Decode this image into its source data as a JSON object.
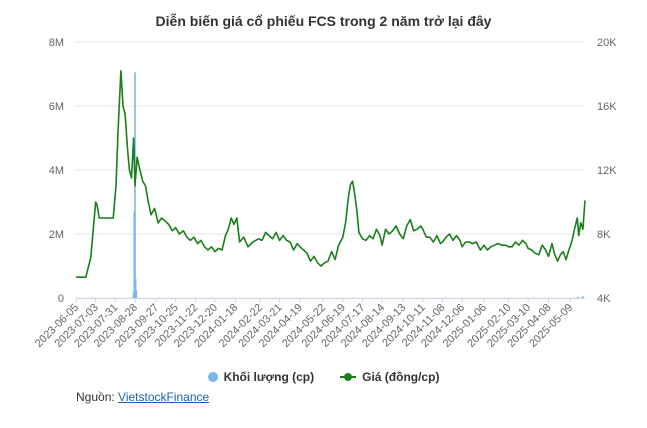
{
  "chart_data": {
    "type": "line",
    "title": "Diễn biến giá cổ phiếu FCS trong 2 năm trở lại đây",
    "x_tick_labels": [
      "2023-06-05",
      "2023-07-03",
      "2023-07-31",
      "2023-08-28",
      "2023-09-27",
      "2023-10-25",
      "2023-11-22",
      "2023-12-20",
      "2024-01-18",
      "2024-02-22",
      "2024-03-21",
      "2024-04-19",
      "2024-05-22",
      "2024-06-19",
      "2024-07-17",
      "2024-08-14",
      "2024-09-13",
      "2024-10-11",
      "2024-11-08",
      "2024-12-06",
      "2025-01-06",
      "2025-02-10",
      "2025-03-10",
      "2025-04-08",
      "2025-05-09"
    ],
    "y_left": {
      "ticks": [
        "0",
        "2M",
        "4M",
        "6M",
        "8M"
      ],
      "range": [
        0,
        8000000
      ]
    },
    "y_right": {
      "ticks": [
        "4K",
        "8K",
        "12K",
        "16K",
        "20K"
      ],
      "range": [
        4000,
        20000
      ]
    },
    "grid": true,
    "legend_position": "bottom",
    "series": [
      {
        "name": "Khối lượng (cp)",
        "kind": "column",
        "axis": "left",
        "color": "#7cb5ec",
        "points": [
          [
            "2023-08-26",
            180000
          ],
          [
            "2023-08-27",
            2700000
          ],
          [
            "2023-08-28",
            7050000
          ],
          [
            "2023-08-29",
            600000
          ],
          [
            "2023-08-30",
            250000
          ],
          [
            "2025-05-20",
            40000
          ],
          [
            "2025-05-27",
            60000
          ]
        ]
      },
      {
        "name": "Giá (đồng/cp)",
        "kind": "line",
        "axis": "right",
        "color": "#1a7f1a",
        "points": [
          [
            "2023-06-05",
            5300
          ],
          [
            "2023-06-12",
            5300
          ],
          [
            "2023-06-19",
            5300
          ],
          [
            "2023-06-26",
            6500
          ],
          [
            "2023-07-03",
            10000
          ],
          [
            "2023-07-05",
            9800
          ],
          [
            "2023-07-08",
            9000
          ],
          [
            "2023-07-12",
            9000
          ],
          [
            "2023-07-20",
            9000
          ],
          [
            "2023-07-28",
            9000
          ],
          [
            "2023-08-01",
            11000
          ],
          [
            "2023-08-04",
            14500
          ],
          [
            "2023-08-08",
            18200
          ],
          [
            "2023-08-11",
            16000
          ],
          [
            "2023-08-14",
            15500
          ],
          [
            "2023-08-17",
            13500
          ],
          [
            "2023-08-20",
            12000
          ],
          [
            "2023-08-23",
            11500
          ],
          [
            "2023-08-26",
            14000
          ],
          [
            "2023-08-28",
            11000
          ],
          [
            "2023-08-31",
            12800
          ],
          [
            "2023-09-04",
            12000
          ],
          [
            "2023-09-08",
            11300
          ],
          [
            "2023-09-12",
            11000
          ],
          [
            "2023-09-16",
            10000
          ],
          [
            "2023-09-20",
            9200
          ],
          [
            "2023-09-25",
            9600
          ],
          [
            "2023-09-30",
            8700
          ],
          [
            "2023-10-05",
            9000
          ],
          [
            "2023-10-10",
            8800
          ],
          [
            "2023-10-15",
            8600
          ],
          [
            "2023-10-20",
            8200
          ],
          [
            "2023-10-25",
            8400
          ],
          [
            "2023-10-30",
            8000
          ],
          [
            "2023-11-05",
            8200
          ],
          [
            "2023-11-10",
            7800
          ],
          [
            "2023-11-15",
            7600
          ],
          [
            "2023-11-20",
            7800
          ],
          [
            "2023-11-25",
            7400
          ],
          [
            "2023-11-30",
            7600
          ],
          [
            "2023-12-05",
            7200
          ],
          [
            "2023-12-10",
            7000
          ],
          [
            "2023-12-15",
            7200
          ],
          [
            "2023-12-20",
            6900
          ],
          [
            "2023-12-25",
            7100
          ],
          [
            "2023-12-30",
            7000
          ],
          [
            "2024-01-04",
            7900
          ],
          [
            "2024-01-08",
            8300
          ],
          [
            "2024-01-12",
            9000
          ],
          [
            "2024-01-16",
            8600
          ],
          [
            "2024-01-20",
            9000
          ],
          [
            "2024-01-24",
            7500
          ],
          [
            "2024-01-30",
            7800
          ],
          [
            "2024-02-05",
            7200
          ],
          [
            "2024-02-12",
            7500
          ],
          [
            "2024-02-20",
            7700
          ],
          [
            "2024-02-25",
            7600
          ],
          [
            "2024-03-01",
            8100
          ],
          [
            "2024-03-06",
            7900
          ],
          [
            "2024-03-11",
            7700
          ],
          [
            "2024-03-16",
            8100
          ],
          [
            "2024-03-21",
            7600
          ],
          [
            "2024-03-26",
            7900
          ],
          [
            "2024-03-31",
            7600
          ],
          [
            "2024-04-05",
            7500
          ],
          [
            "2024-04-10",
            7000
          ],
          [
            "2024-04-15",
            7400
          ],
          [
            "2024-04-19",
            7200
          ],
          [
            "2024-04-24",
            7000
          ],
          [
            "2024-04-29",
            6800
          ],
          [
            "2024-05-04",
            6300
          ],
          [
            "2024-05-09",
            6600
          ],
          [
            "2024-05-14",
            6200
          ],
          [
            "2024-05-19",
            6000
          ],
          [
            "2024-05-24",
            6200
          ],
          [
            "2024-05-29",
            6300
          ],
          [
            "2024-06-03",
            6900
          ],
          [
            "2024-06-08",
            6400
          ],
          [
            "2024-06-13",
            7300
          ],
          [
            "2024-06-19",
            7800
          ],
          [
            "2024-06-23",
            8700
          ],
          [
            "2024-06-27",
            10300
          ],
          [
            "2024-06-30",
            11100
          ],
          [
            "2024-07-03",
            11300
          ],
          [
            "2024-07-06",
            10500
          ],
          [
            "2024-07-09",
            9500
          ],
          [
            "2024-07-12",
            8100
          ],
          [
            "2024-07-17",
            7700
          ],
          [
            "2024-07-22",
            7600
          ],
          [
            "2024-07-27",
            7900
          ],
          [
            "2024-08-01",
            7700
          ],
          [
            "2024-08-06",
            8300
          ],
          [
            "2024-08-11",
            7900
          ],
          [
            "2024-08-14",
            7300
          ],
          [
            "2024-08-19",
            8300
          ],
          [
            "2024-08-24",
            8000
          ],
          [
            "2024-08-29",
            8200
          ],
          [
            "2024-09-03",
            8500
          ],
          [
            "2024-09-08",
            8000
          ],
          [
            "2024-09-13",
            7700
          ],
          [
            "2024-09-18",
            8500
          ],
          [
            "2024-09-23",
            8900
          ],
          [
            "2024-09-28",
            8200
          ],
          [
            "2024-10-03",
            8300
          ],
          [
            "2024-10-08",
            8500
          ],
          [
            "2024-10-11",
            8300
          ],
          [
            "2024-10-16",
            7800
          ],
          [
            "2024-10-21",
            7800
          ],
          [
            "2024-10-26",
            7500
          ],
          [
            "2024-10-31",
            7900
          ],
          [
            "2024-11-05",
            7400
          ],
          [
            "2024-11-08",
            7500
          ],
          [
            "2024-11-13",
            7800
          ],
          [
            "2024-11-18",
            8000
          ],
          [
            "2024-11-23",
            7600
          ],
          [
            "2024-11-28",
            7900
          ],
          [
            "2024-12-03",
            7600
          ],
          [
            "2024-12-06",
            7200
          ],
          [
            "2024-12-11",
            7500
          ],
          [
            "2024-12-16",
            7500
          ],
          [
            "2024-12-21",
            7400
          ],
          [
            "2024-12-26",
            7500
          ],
          [
            "2025-01-01",
            7000
          ],
          [
            "2025-01-06",
            7300
          ],
          [
            "2025-01-11",
            7000
          ],
          [
            "2025-01-16",
            7200
          ],
          [
            "2025-01-21",
            7300
          ],
          [
            "2025-01-26",
            7400
          ],
          [
            "2025-02-01",
            7300
          ],
          [
            "2025-02-06",
            7300
          ],
          [
            "2025-02-10",
            7200
          ],
          [
            "2025-02-15",
            7200
          ],
          [
            "2025-02-20",
            7500
          ],
          [
            "2025-02-25",
            7300
          ],
          [
            "2025-03-02",
            7600
          ],
          [
            "2025-03-07",
            7400
          ],
          [
            "2025-03-10",
            7100
          ],
          [
            "2025-03-15",
            7000
          ],
          [
            "2025-03-20",
            6800
          ],
          [
            "2025-03-25",
            6700
          ],
          [
            "2025-03-30",
            7300
          ],
          [
            "2025-04-04",
            7000
          ],
          [
            "2025-04-08",
            6600
          ],
          [
            "2025-04-13",
            7400
          ],
          [
            "2025-04-17",
            6700
          ],
          [
            "2025-04-21",
            6300
          ],
          [
            "2025-04-25",
            6700
          ],
          [
            "2025-04-29",
            6900
          ],
          [
            "2025-05-03",
            6400
          ],
          [
            "2025-05-07",
            7000
          ],
          [
            "2025-05-11",
            7500
          ],
          [
            "2025-05-15",
            8300
          ],
          [
            "2025-05-19",
            9000
          ],
          [
            "2025-05-21",
            7900
          ],
          [
            "2025-05-24",
            8700
          ],
          [
            "2025-05-27",
            8300
          ],
          [
            "2025-05-30",
            10100
          ]
        ]
      }
    ]
  },
  "source": {
    "label": "Nguồn:",
    "link_text": "VietstockFinance"
  }
}
